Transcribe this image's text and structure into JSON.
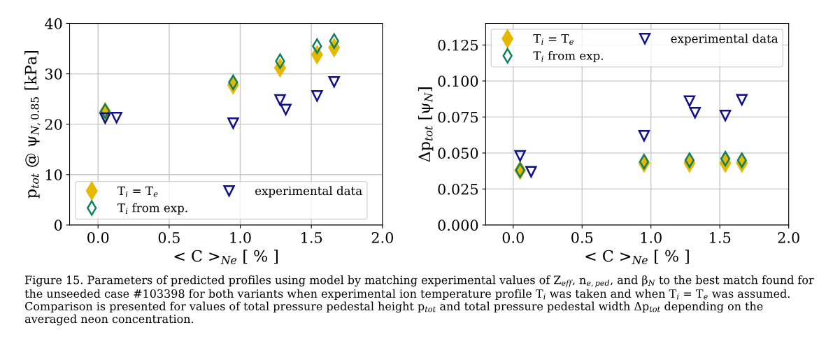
{
  "chart_data": [
    {
      "type": "scatter",
      "xlabel": "< C >$_{Ne}$ [ % ]",
      "ylabel": "p$_{tot}$ @ ψ$_{N,0.85}$ [kPa]",
      "xlim": [
        -0.2,
        2.0
      ],
      "xticks": [
        {
          "value": 0,
          "label": "0.0"
        },
        {
          "value": 0.5,
          "label": "0.5"
        },
        {
          "value": 1,
          "label": "1.0"
        },
        {
          "value": 1.5,
          "label": "1.5"
        },
        {
          "value": 2,
          "label": "2.0"
        }
      ],
      "ylim": [
        0,
        40
      ],
      "yticks": [
        0,
        10,
        20,
        30,
        40
      ],
      "grid": true,
      "legend": "bottom left",
      "series": [
        {
          "name": "T$_{i}$ = T$_{e}$",
          "color": "#e6b800",
          "marker": "diamond",
          "x": [
            0.05,
            0.95,
            1.28,
            1.54,
            1.66
          ],
          "values": [
            22.5,
            27.8,
            31.2,
            33.8,
            35.2
          ]
        },
        {
          "name": "T$_{i}$ from exp.",
          "color": "#0f8060",
          "marker": "diamond",
          "x": [
            0.05,
            0.95,
            1.28,
            1.54,
            1.66
          ],
          "values": [
            22.6,
            28.3,
            32.5,
            35.5,
            36.5
          ]
        },
        {
          "name": "experimental data",
          "color": "#10108a",
          "marker": "triangle",
          "x": [
            0.05,
            0.13,
            0.95,
            1.28,
            1.32,
            1.54,
            1.66
          ],
          "values": [
            21.2,
            21.3,
            20.2,
            24.8,
            22.9,
            25.6,
            28.4
          ]
        }
      ],
      "annotations": [
        "Figure 15. Parameters of predicted profiles using model by matching experimental values of Z$_{eff}$, n$_{e,ped}$, and β$_{N}$ to the best match found for the unseeded case #103398 for both variants when experimental ion temperature profile T$_{i}$ was taken and when T$_{i}$ = T$_{e}$ was assumed. Comparison is presented for values of total pressure pedestal height p$_{tot}$ and total pressure pedestal width Δp$_{tot}$ depending on the averaged neon concentration."
      ]
    },
    {
      "type": "scatter",
      "xlabel": "< C >$_{Ne}$ [ % ]",
      "ylabel": "Δp$_{tot}$ [ψ$_{N}$]",
      "xlim": [
        -0.2,
        2.0
      ],
      "xticks": [
        {
          "value": 0,
          "label": "0.0"
        },
        {
          "value": 0.5,
          "label": "0.5"
        },
        {
          "value": 1,
          "label": "1.0"
        },
        {
          "value": 1.5,
          "label": "1.5"
        },
        {
          "value": 2,
          "label": "2.0"
        }
      ],
      "ylim": [
        0,
        0.14
      ],
      "yticks": [
        {
          "value": 0,
          "label": "0.000"
        },
        {
          "value": 0.025,
          "label": "0.025"
        },
        {
          "value": 0.05,
          "label": "0.050"
        },
        {
          "value": 0.075,
          "label": "0.075"
        },
        {
          "value": 0.1,
          "label": "0.100"
        },
        {
          "value": 0.125,
          "label": "0.125"
        }
      ],
      "grid": true,
      "legend": "top right",
      "series": [
        {
          "name": "T$_{i}$ = T$_{e}$",
          "color": "#e6b800",
          "marker": "diamond",
          "x": [
            0.05,
            0.95,
            1.28,
            1.54,
            1.66
          ],
          "values": [
            0.038,
            0.043,
            0.043,
            0.043,
            0.043
          ]
        },
        {
          "name": "T$_{i}$ from exp.",
          "color": "#0f8060",
          "marker": "diamond",
          "x": [
            0.05,
            0.95,
            1.28,
            1.54,
            1.66
          ],
          "values": [
            0.038,
            0.044,
            0.045,
            0.046,
            0.045
          ]
        },
        {
          "name": "experimental data",
          "color": "#10108a",
          "marker": "triangle",
          "x": [
            0.05,
            0.13,
            0.95,
            1.28,
            1.32,
            1.54,
            1.66
          ],
          "values": [
            0.048,
            0.037,
            0.062,
            0.086,
            0.078,
            0.076,
            0.087
          ]
        }
      ]
    }
  ]
}
